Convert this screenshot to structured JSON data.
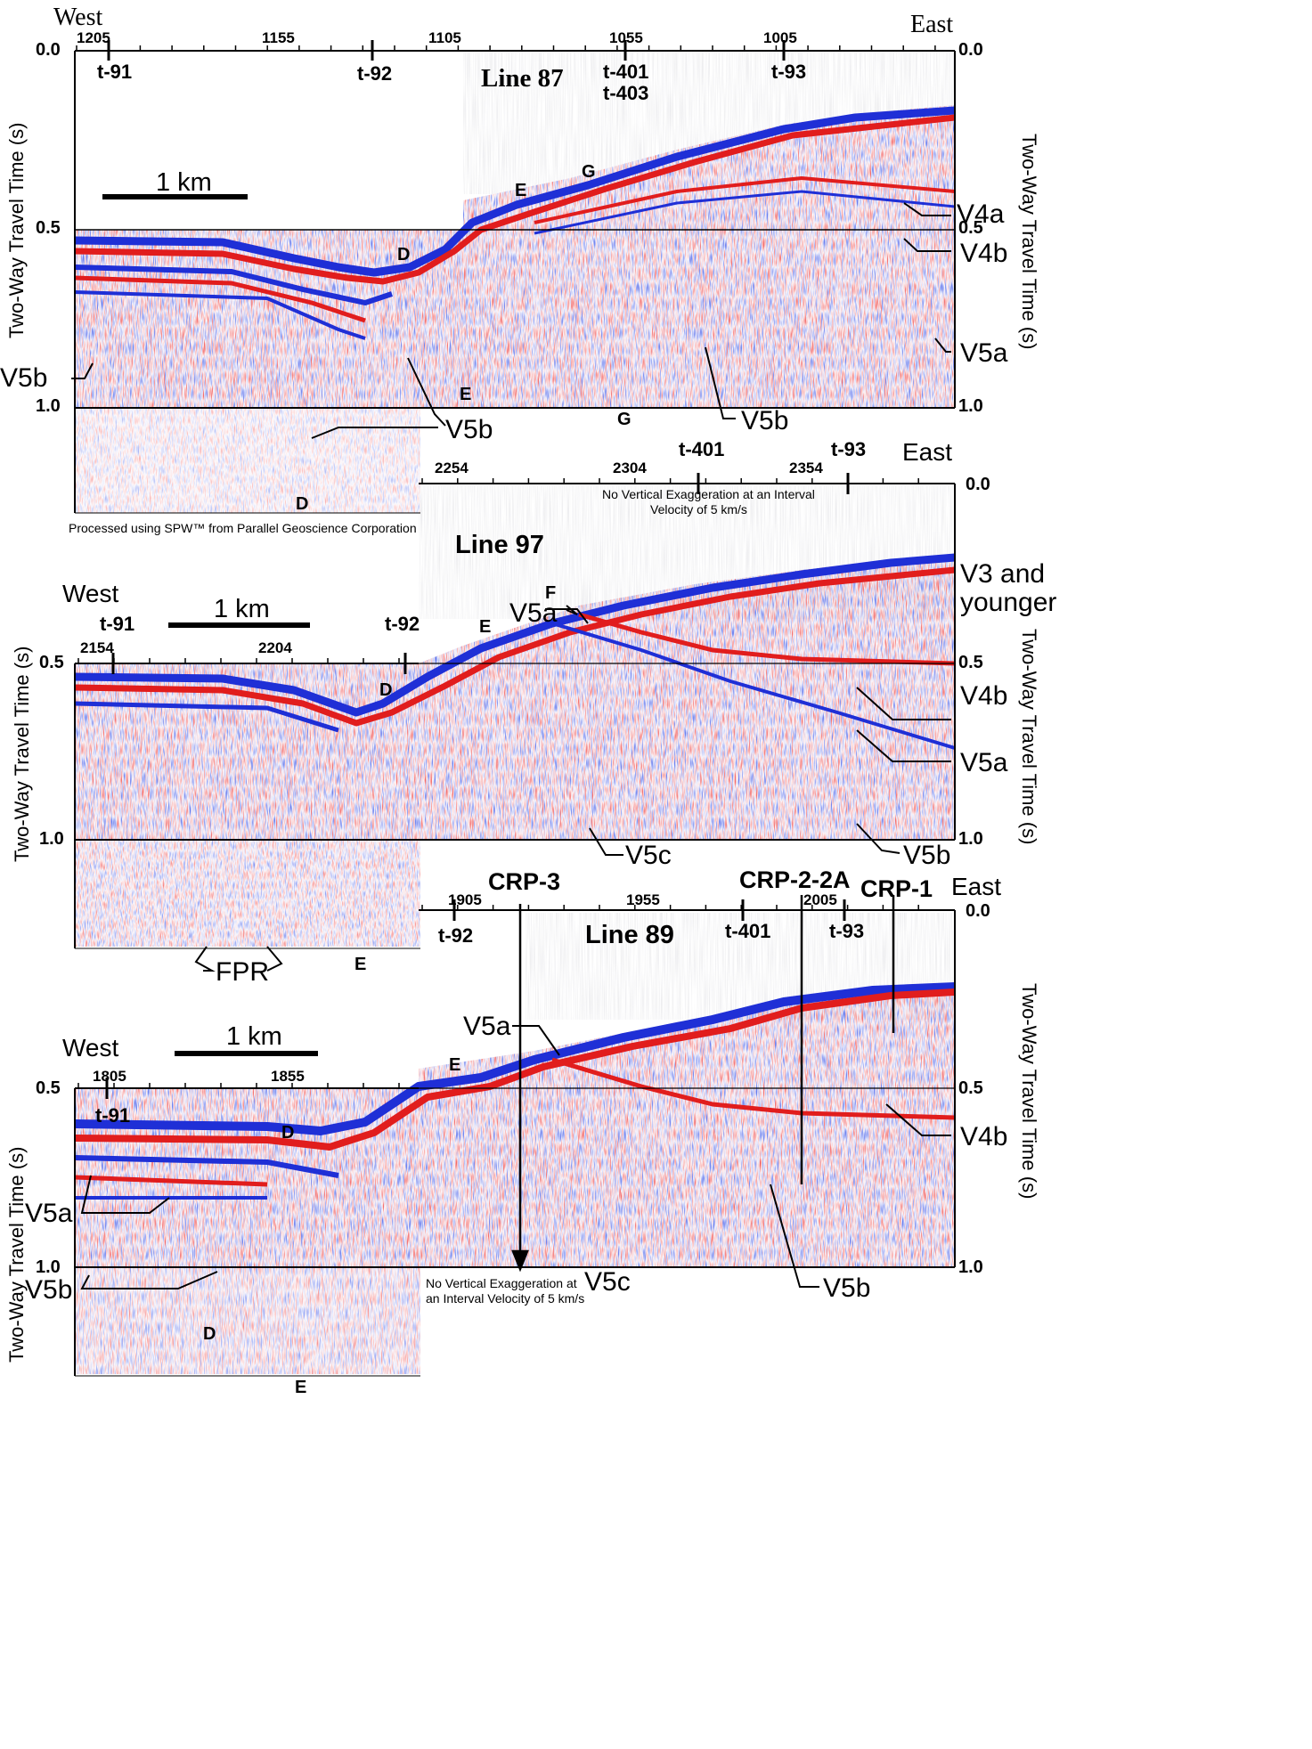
{
  "figure": {
    "processing_note": "Processed using SPW™ from Parallel Geoscience Corporation",
    "y_axis_label": "Two-Way Travel Time (s)",
    "scale_bar": "1 km",
    "colors": {
      "positive": "#e11d1d",
      "negative": "#1f2fd6",
      "background": "#ffffff"
    },
    "panels": [
      {
        "id": "line-87",
        "title": "Line 87",
        "west": "West",
        "east": "East",
        "shotpoints": [
          "1205",
          "1155",
          "1105",
          "1055",
          "1005"
        ],
        "tie_lines": [
          "t-91",
          "t-92",
          "t-401",
          "t-403",
          "t-93"
        ],
        "time_ticks": [
          "0.0",
          "0.5",
          "1.0"
        ],
        "horizons": [
          "V4a",
          "V4b",
          "V5a",
          "V5b",
          "V5b",
          "V5b",
          "V5b"
        ],
        "events": [
          "D",
          "E",
          "G",
          "E",
          "G",
          "D"
        ]
      },
      {
        "id": "line-97",
        "title": "Line 97",
        "west": "West",
        "east": "East",
        "shotpoints": [
          "2154",
          "2204",
          "2254",
          "2304",
          "2354"
        ],
        "tie_lines": [
          "t-91",
          "t-92",
          "t-401",
          "t-93"
        ],
        "time_ticks": [
          "0.0",
          "0.5",
          "0.5",
          "1.0",
          "1.0"
        ],
        "note": "No Vertical Exaggeration at an Interval Velocity of 5 km/s",
        "note_lines": [
          "No Vertical Exaggeration at an Interval",
          "Velocity of 5 km/s"
        ],
        "horizons": [
          "V3 and",
          "younger",
          "V5a",
          "V4b",
          "V5a",
          "V5c",
          "V5b",
          "FPR"
        ],
        "events": [
          "F",
          "E",
          "D",
          "E"
        ]
      },
      {
        "id": "line-89",
        "title": "Line 89",
        "west": "West",
        "east": "East",
        "shotpoints": [
          "1805",
          "1855",
          "1905",
          "1955",
          "2005"
        ],
        "tie_lines": [
          "t-91",
          "t-92",
          "t-401",
          "t-93"
        ],
        "time_ticks": [
          "0.0",
          "0.5",
          "0.5",
          "1.0",
          "1.0"
        ],
        "drill_sites": [
          "CRP-3",
          "CRP-2-2A",
          "CRP-1"
        ],
        "note_lines": [
          "No Vertical Exaggeration at",
          "an Interval Velocity of 5 km/s"
        ],
        "horizons": [
          "V5a",
          "V4b",
          "V5a",
          "V5b",
          "V5c",
          "V5b"
        ],
        "events": [
          "E",
          "D",
          "D",
          "E"
        ]
      }
    ]
  }
}
